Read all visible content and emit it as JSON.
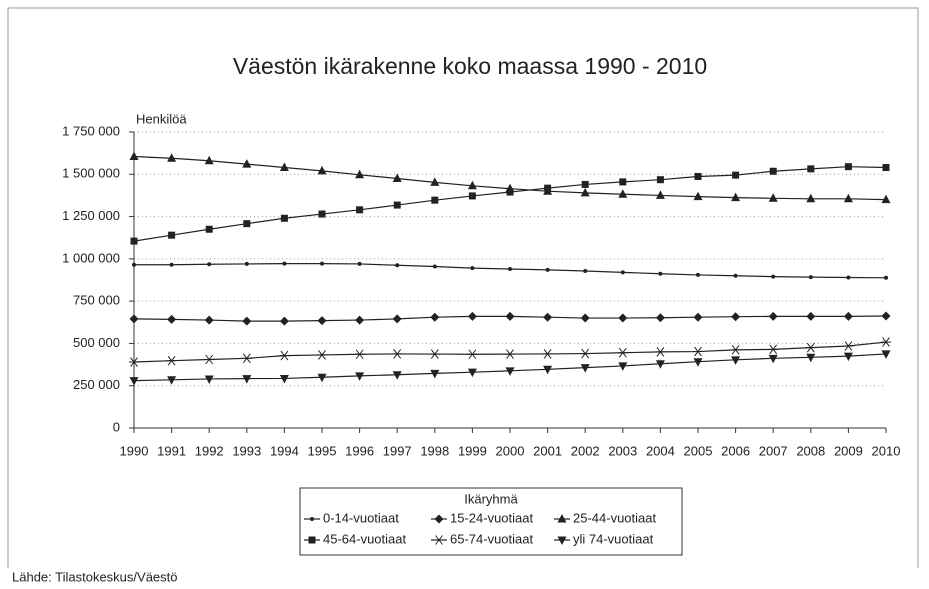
{
  "chart_data": {
    "type": "line",
    "title": "Väestön ikärakenne koko maassa 1990 - 2010",
    "y_label": "Henkilöä",
    "legend_title": "Ikäryhmä",
    "source": "Lähde: Tilastokeskus/Väestö",
    "legend": "bottom",
    "grid": true,
    "x": [
      1990,
      1991,
      1992,
      1993,
      1994,
      1995,
      1996,
      1997,
      1998,
      1999,
      2000,
      2001,
      2002,
      2003,
      2004,
      2005,
      2006,
      2007,
      2008,
      2009,
      2010
    ],
    "xlim": [
      1990,
      2010
    ],
    "xticks": [
      1990,
      1991,
      1992,
      1993,
      1994,
      1995,
      1996,
      1997,
      1998,
      1999,
      2000,
      2001,
      2002,
      2003,
      2004,
      2005,
      2006,
      2007,
      2008,
      2009,
      2010
    ],
    "ylim": [
      0,
      1750000
    ],
    "yticks": [
      0,
      {
        "value": 250000,
        "label": "250 000"
      },
      {
        "value": 500000,
        "label": "500 000"
      },
      {
        "value": 750000,
        "label": "750 000"
      },
      {
        "value": 1000000,
        "label": "1 000 000"
      },
      {
        "value": 1250000,
        "label": "1 250 000"
      },
      {
        "value": 1500000,
        "label": "1 500 000"
      },
      {
        "value": 1750000,
        "label": "1 750 000"
      }
    ],
    "series": [
      {
        "name": "0-14-vuotiaat",
        "color": "#222222",
        "marker": "circle",
        "values": [
          965000,
          965000,
          968000,
          970000,
          972000,
          972000,
          970000,
          962000,
          955000,
          945000,
          940000,
          935000,
          928000,
          920000,
          912000,
          905000,
          900000,
          895000,
          892000,
          890000,
          888000
        ]
      },
      {
        "name": "15-24-vuotiaat",
        "color": "#222222",
        "marker": "diamond",
        "values": [
          645000,
          642000,
          638000,
          632000,
          632000,
          635000,
          638000,
          645000,
          655000,
          660000,
          660000,
          655000,
          650000,
          650000,
          652000,
          655000,
          658000,
          660000,
          660000,
          660000,
          662000
        ]
      },
      {
        "name": "25-44-vuotiaat",
        "color": "#222222",
        "marker": "triangle-up",
        "values": [
          1605000,
          1595000,
          1580000,
          1560000,
          1540000,
          1520000,
          1497000,
          1475000,
          1452000,
          1432000,
          1415000,
          1400000,
          1390000,
          1382000,
          1375000,
          1368000,
          1362000,
          1358000,
          1355000,
          1355000,
          1350000
        ]
      },
      {
        "name": "45-64-vuotiaat",
        "color": "#222222",
        "marker": "square",
        "values": [
          1105000,
          1140000,
          1175000,
          1208000,
          1240000,
          1265000,
          1290000,
          1318000,
          1347000,
          1372000,
          1395000,
          1418000,
          1440000,
          1455000,
          1468000,
          1487000,
          1495000,
          1518000,
          1532000,
          1545000,
          1540000
        ]
      },
      {
        "name": "65-74-vuotiaat",
        "color": "#222222",
        "marker": "asterisk",
        "values": [
          390000,
          398000,
          405000,
          412000,
          428000,
          432000,
          436000,
          438000,
          437000,
          436000,
          437000,
          438000,
          440000,
          445000,
          450000,
          452000,
          462000,
          465000,
          475000,
          485000,
          508000
        ]
      },
      {
        "name": "yli 74-vuotiaat",
        "color": "#222222",
        "marker": "triangle-down",
        "values": [
          280000,
          285000,
          290000,
          292000,
          293000,
          300000,
          308000,
          315000,
          323000,
          330000,
          338000,
          347000,
          357000,
          367000,
          380000,
          392000,
          403000,
          412000,
          418000,
          425000,
          438000
        ]
      }
    ]
  }
}
